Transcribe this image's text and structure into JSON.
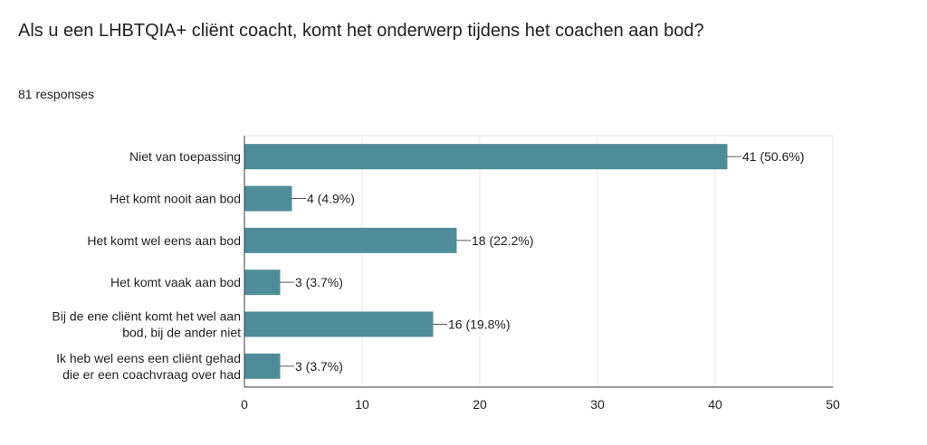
{
  "header": {
    "title": "Als u een LHBTQIA+ cliënt coacht, komt het onderwerp tijdens het coachen aan bod?",
    "responses": "81 responses"
  },
  "colors": {
    "bar": "#4f8c99",
    "grid": "#e8e8e8",
    "axis": "#3c3c3c"
  },
  "chart_data": {
    "type": "bar",
    "orientation": "horizontal",
    "categories": [
      [
        "Niet van toepassing"
      ],
      [
        "Het komt nooit aan bod"
      ],
      [
        "Het komt wel eens aan bod"
      ],
      [
        "Het komt vaak aan bod"
      ],
      [
        "Bij de ene cliënt komt het wel aan",
        "bod, bij de ander niet"
      ],
      [
        "Ik heb wel eens een cliënt gehad",
        "die er een coachvraag over had"
      ]
    ],
    "values": [
      41,
      4,
      18,
      3,
      16,
      3
    ],
    "value_labels": [
      "41 (50.6%)",
      "4 (4.9%)",
      "18 (22.2%)",
      "3 (3.7%)",
      "16 (19.8%)",
      "3 (3.7%)"
    ],
    "xlim": [
      0,
      50
    ],
    "xticks": [
      0,
      10,
      20,
      30,
      40,
      50
    ],
    "grid": true
  }
}
